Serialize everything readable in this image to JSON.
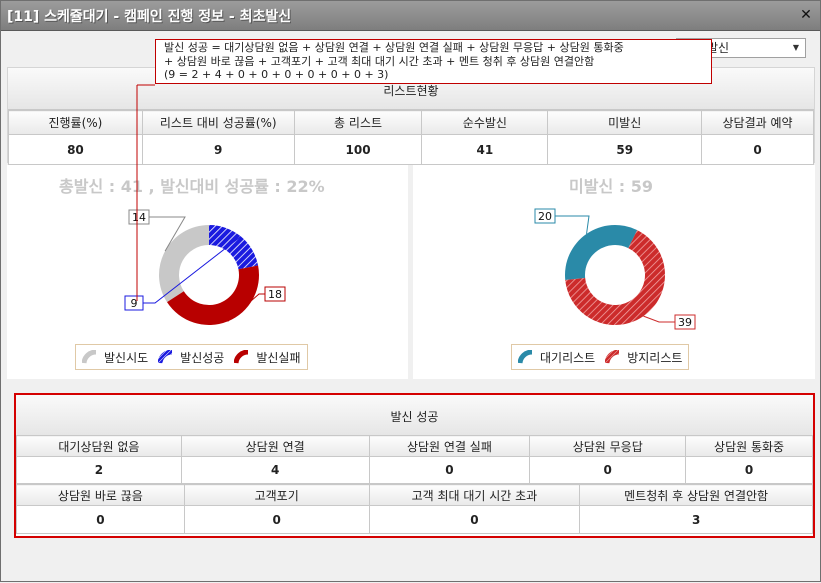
{
  "window": {
    "title": "[11] 스케쥴대기 - 캠페인 진행 정보 - 최초발신",
    "close_label": "✕"
  },
  "tooltip": {
    "line1": "발신 성공 = 대기상담원 없음 + 상담원 연결 + 상담원 연결 실패 + 상담원 무응답 + 상담원 통화중",
    "line2": "+ 상담원 바로 끊음 + 고객포기 + 고객 최대 대기 시간 초과 + 멘트 청취 후 상담원 연결안함",
    "line3": "(9 = 2 + 4 + 0 + 0 + 0 + 0 + 0 + 0 + 3)"
  },
  "combo": {
    "value": "발신"
  },
  "list_status": {
    "title": "리스트현황",
    "headers": [
      "진행률(%)",
      "리스트 대비 성공률(%)",
      "총 리스트",
      "순수발신",
      "미발신",
      "상담결과 예약"
    ],
    "values": [
      "80",
      "9",
      "100",
      "41",
      "59",
      "0"
    ]
  },
  "chart_left": {
    "title_label1": "총발신",
    "title_value1": "41",
    "title_label2": "발신대비 성공률",
    "title_value2": "22%"
  },
  "chart_right": {
    "title_label": "미발신",
    "title_value": "59"
  },
  "chart_data": [
    {
      "type": "pie",
      "categories": [
        "발신시도",
        "발신성공",
        "발신실패"
      ],
      "values": [
        14,
        9,
        18
      ],
      "colors": [
        "#c8c8c8",
        "#1a1adf",
        "#b80000"
      ],
      "title": "총발신 : 41 , 발신대비 성공률 : 22%"
    },
    {
      "type": "pie",
      "categories": [
        "대기리스트",
        "방지리스트"
      ],
      "values": [
        20,
        39
      ],
      "colors": [
        "#2a8aa8",
        "#cc2b2b"
      ],
      "title": "미발신 : 59"
    }
  ],
  "success": {
    "title": "발신 성공",
    "row1_headers": [
      "대기상담원 없음",
      "상담원 연결",
      "상담원 연결 실패",
      "상담원 무응답",
      "상담원 통화중"
    ],
    "row1_values": [
      "2",
      "4",
      "0",
      "0",
      "0"
    ],
    "row2_headers": [
      "상담원 바로 끊음",
      "고객포기",
      "고객 최대 대기 시간 초과",
      "멘트청취 후 상담원 연결안함"
    ],
    "row2_values": [
      "0",
      "0",
      "0",
      "3"
    ]
  }
}
